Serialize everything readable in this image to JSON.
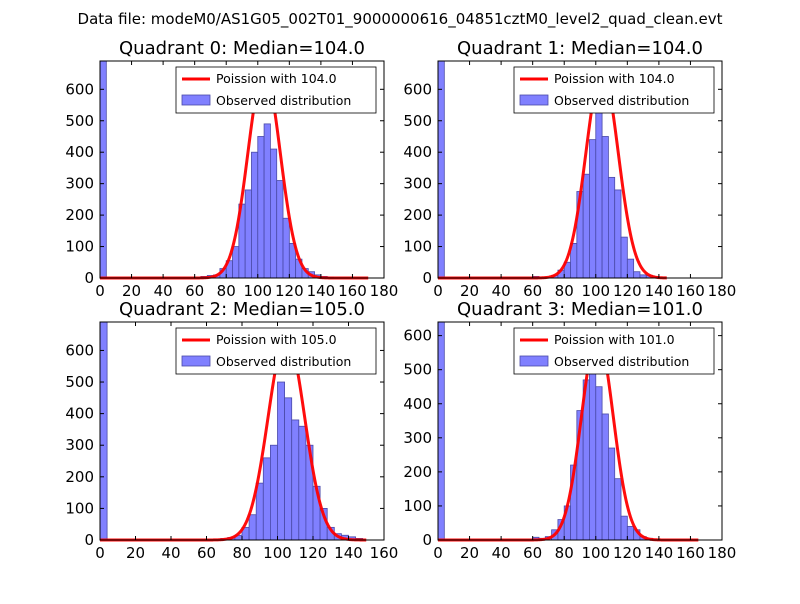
{
  "figure_title": "Data file: modeM0/AS1G05_002T01_9000000616_04851cztM0_level2_quad_clean.evt",
  "colors": {
    "bar_fill": "#8080ff",
    "bar_edge": "#4a4aa8",
    "poisson_line": "#ff0000"
  },
  "chart_data": [
    {
      "type": "bar",
      "title": "Quadrant 0: Median=104.0",
      "xlim": [
        0,
        180
      ],
      "ylim": [
        0,
        690
      ],
      "xticks": [
        0,
        20,
        40,
        60,
        80,
        100,
        120,
        140,
        160,
        180
      ],
      "yticks": [
        0,
        100,
        200,
        300,
        400,
        500,
        600
      ],
      "legend": [
        "Poission with 104.0",
        "Observed distribution"
      ],
      "mean": 104.0,
      "bin_width": 4,
      "bars": [
        {
          "x": 0,
          "y": 690
        },
        {
          "x": 64,
          "y": 5
        },
        {
          "x": 68,
          "y": 8
        },
        {
          "x": 72,
          "y": 10
        },
        {
          "x": 76,
          "y": 30
        },
        {
          "x": 80,
          "y": 55
        },
        {
          "x": 84,
          "y": 100
        },
        {
          "x": 88,
          "y": 235
        },
        {
          "x": 92,
          "y": 280
        },
        {
          "x": 96,
          "y": 400
        },
        {
          "x": 100,
          "y": 450
        },
        {
          "x": 104,
          "y": 490
        },
        {
          "x": 108,
          "y": 410
        },
        {
          "x": 112,
          "y": 310
        },
        {
          "x": 116,
          "y": 190
        },
        {
          "x": 120,
          "y": 110
        },
        {
          "x": 124,
          "y": 60
        },
        {
          "x": 128,
          "y": 30
        },
        {
          "x": 132,
          "y": 20
        },
        {
          "x": 136,
          "y": 10
        },
        {
          "x": 140,
          "y": 5
        },
        {
          "x": 144,
          "y": 3
        }
      ],
      "poisson_peak": 660,
      "curve_range": [
        0,
        170
      ]
    },
    {
      "type": "bar",
      "title": "Quadrant 1: Median=104.0",
      "xlim": [
        0,
        180
      ],
      "ylim": [
        0,
        690
      ],
      "xticks": [
        0,
        20,
        40,
        60,
        80,
        100,
        120,
        140,
        160,
        180
      ],
      "yticks": [
        0,
        100,
        200,
        300,
        400,
        500,
        600
      ],
      "legend": [
        "Poission with 104.0",
        "Observed distribution"
      ],
      "mean": 104.0,
      "bin_width": 4,
      "bars": [
        {
          "x": 0,
          "y": 690
        },
        {
          "x": 60,
          "y": 5
        },
        {
          "x": 72,
          "y": 8
        },
        {
          "x": 76,
          "y": 25
        },
        {
          "x": 80,
          "y": 50
        },
        {
          "x": 84,
          "y": 110
        },
        {
          "x": 88,
          "y": 275
        },
        {
          "x": 92,
          "y": 330
        },
        {
          "x": 96,
          "y": 440
        },
        {
          "x": 100,
          "y": 600
        },
        {
          "x": 104,
          "y": 450
        },
        {
          "x": 108,
          "y": 320
        },
        {
          "x": 112,
          "y": 280
        },
        {
          "x": 116,
          "y": 130
        },
        {
          "x": 120,
          "y": 60
        },
        {
          "x": 124,
          "y": 20
        },
        {
          "x": 128,
          "y": 10
        },
        {
          "x": 132,
          "y": 8
        },
        {
          "x": 136,
          "y": 5
        }
      ],
      "poisson_peak": 660,
      "curve_range": [
        0,
        145
      ]
    },
    {
      "type": "bar",
      "title": "Quadrant 2: Median=105.0",
      "xlim": [
        0,
        160
      ],
      "ylim": [
        0,
        690
      ],
      "xticks": [
        0,
        20,
        40,
        60,
        80,
        100,
        120,
        140,
        160
      ],
      "yticks": [
        0,
        100,
        200,
        300,
        400,
        500,
        600
      ],
      "legend": [
        "Poission with 105.0",
        "Observed distribution"
      ],
      "mean": 105.0,
      "bin_width": 4,
      "bars": [
        {
          "x": 0,
          "y": 690
        },
        {
          "x": 68,
          "y": 5
        },
        {
          "x": 72,
          "y": 8
        },
        {
          "x": 76,
          "y": 15
        },
        {
          "x": 80,
          "y": 40
        },
        {
          "x": 84,
          "y": 80
        },
        {
          "x": 88,
          "y": 180
        },
        {
          "x": 92,
          "y": 260
        },
        {
          "x": 96,
          "y": 300
        },
        {
          "x": 100,
          "y": 500
        },
        {
          "x": 104,
          "y": 450
        },
        {
          "x": 108,
          "y": 380
        },
        {
          "x": 112,
          "y": 360
        },
        {
          "x": 116,
          "y": 300
        },
        {
          "x": 120,
          "y": 170
        },
        {
          "x": 124,
          "y": 100
        },
        {
          "x": 128,
          "y": 40
        },
        {
          "x": 132,
          "y": 20
        },
        {
          "x": 136,
          "y": 15
        },
        {
          "x": 140,
          "y": 10
        },
        {
          "x": 144,
          "y": 5
        }
      ],
      "poisson_peak": 645,
      "curve_range": [
        0,
        150
      ]
    },
    {
      "type": "bar",
      "title": "Quadrant 3: Median=101.0",
      "xlim": [
        0,
        180
      ],
      "ylim": [
        0,
        640
      ],
      "xticks": [
        0,
        20,
        40,
        60,
        80,
        100,
        120,
        140,
        160,
        180
      ],
      "yticks": [
        0,
        100,
        200,
        300,
        400,
        500,
        600
      ],
      "legend": [
        "Poission with 101.0",
        "Observed distribution"
      ],
      "mean": 101.0,
      "bin_width": 4,
      "bars": [
        {
          "x": 0,
          "y": 640
        },
        {
          "x": 60,
          "y": 8
        },
        {
          "x": 64,
          "y": 5
        },
        {
          "x": 68,
          "y": 10
        },
        {
          "x": 72,
          "y": 30
        },
        {
          "x": 76,
          "y": 60
        },
        {
          "x": 80,
          "y": 100
        },
        {
          "x": 84,
          "y": 220
        },
        {
          "x": 88,
          "y": 380
        },
        {
          "x": 92,
          "y": 470
        },
        {
          "x": 96,
          "y": 500
        },
        {
          "x": 100,
          "y": 450
        },
        {
          "x": 104,
          "y": 370
        },
        {
          "x": 108,
          "y": 270
        },
        {
          "x": 112,
          "y": 180
        },
        {
          "x": 116,
          "y": 70
        },
        {
          "x": 120,
          "y": 40
        },
        {
          "x": 124,
          "y": 30
        },
        {
          "x": 128,
          "y": 10
        },
        {
          "x": 132,
          "y": 5
        }
      ],
      "poisson_peak": 600,
      "curve_range": [
        0,
        165
      ]
    }
  ]
}
